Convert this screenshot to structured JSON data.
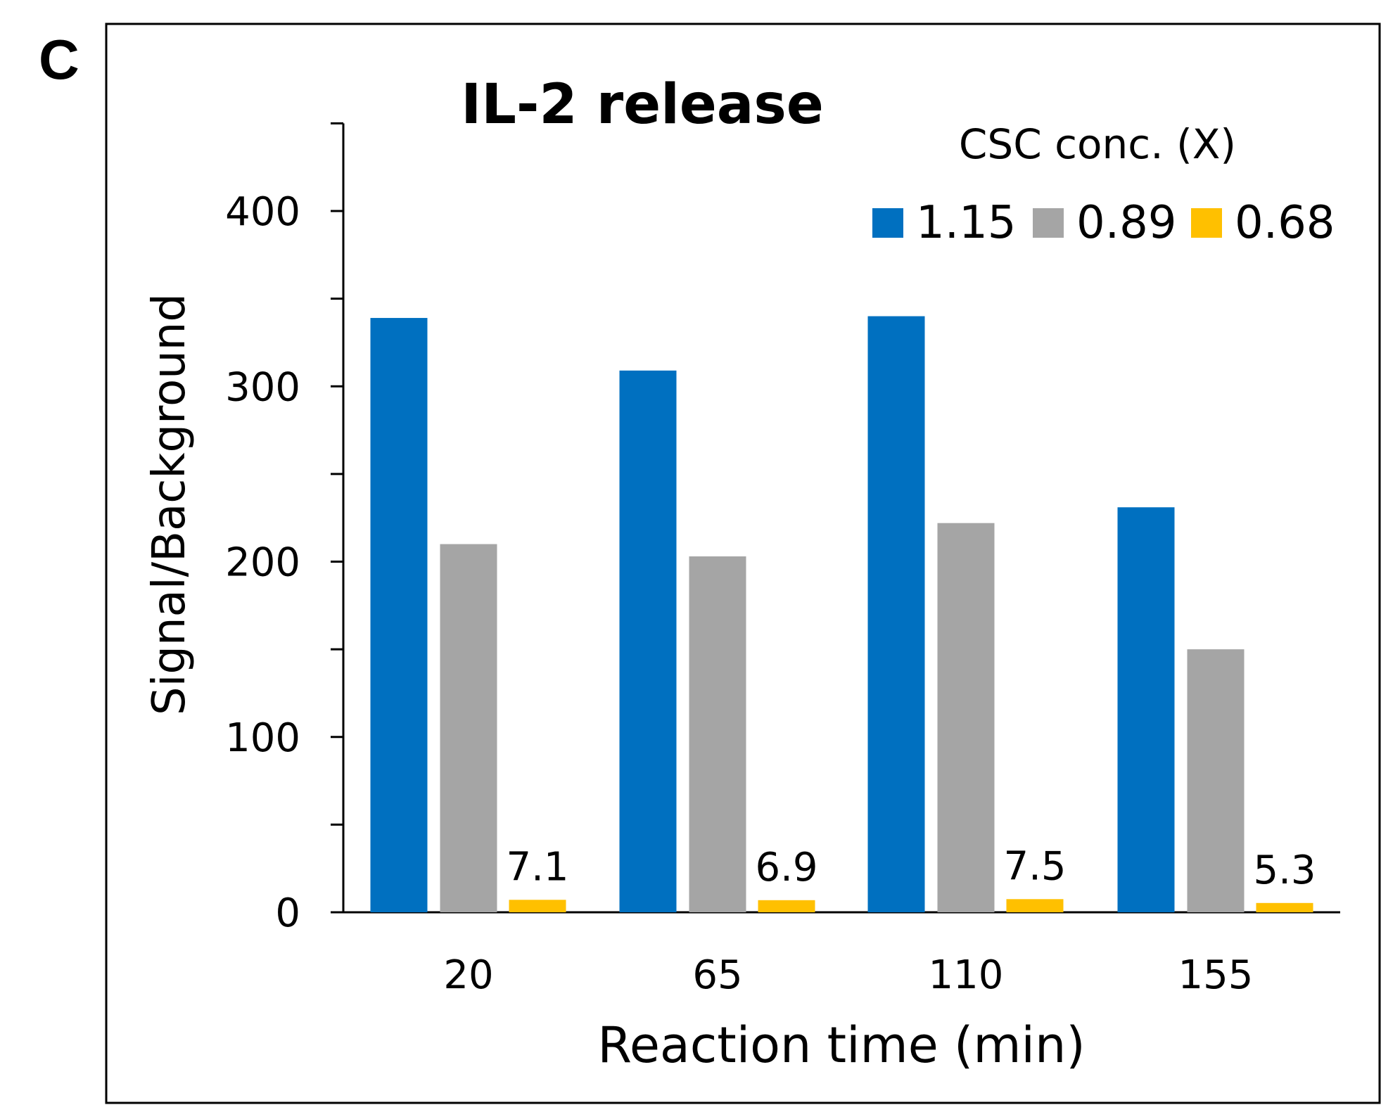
{
  "panel_label": "C",
  "chart_data": {
    "type": "bar",
    "title": "IL-2 release",
    "xlabel": "Reaction time (min)",
    "ylabel": "Signal/Background",
    "categories": [
      "20",
      "65",
      "110",
      "155"
    ],
    "ylim": [
      0,
      450
    ],
    "yticks": [
      "0",
      "100",
      "200",
      "300",
      "400"
    ],
    "legend_title": "CSC conc. (X)",
    "legend_position": "top-right",
    "grid": false,
    "series": [
      {
        "name": "1.15",
        "color": "#0070C0",
        "values": [
          339,
          309,
          340,
          231
        ]
      },
      {
        "name": "0.89",
        "color": "#A5A5A5",
        "values": [
          210,
          203,
          222,
          150
        ]
      },
      {
        "name": "0.68",
        "color": "#FFC000",
        "values": [
          7.1,
          6.9,
          7.5,
          5.3
        ],
        "labels": [
          "7.1",
          "6.9",
          "7.5",
          "5.3"
        ]
      }
    ]
  }
}
